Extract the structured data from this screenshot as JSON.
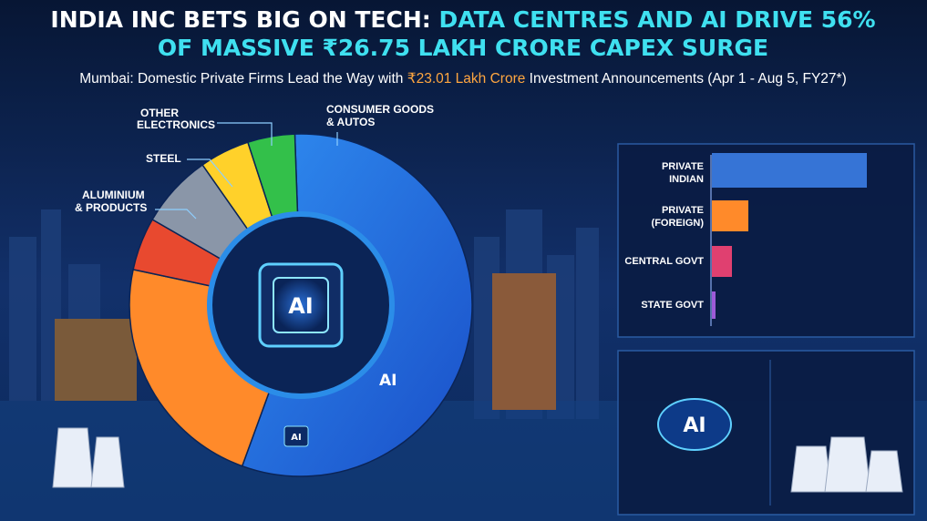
{
  "header": {
    "title_white": "INDIA INC BETS BIG ON TECH: ",
    "title_cyan": "DATA CENTRES AND AI DRIVE 56%",
    "title_line2": "OF MASSIVE ₹26.75 LAKH CRORE CAPEX SURGE",
    "subtitle_start": "Mumbai: Domestic Private Firms Lead the Way with ",
    "subtitle_highlight": "₹23.01 Lakh Crore",
    "subtitle_end": " Investment Announcements (Apr 1 - Aug 5, FY27*)"
  },
  "donut": {
    "labels": {
      "other_electronics": [
        "OTHER",
        "ELECTRONICS"
      ],
      "steel": "STEEL",
      "aluminium": [
        "ALUMINIUM",
        "& PRODUCTS"
      ],
      "consumer": [
        "CONSUMER GOODS",
        "& AUTOS"
      ]
    },
    "center": "AI",
    "small_ai": "AI",
    "chip_ai": "AI"
  },
  "panel": {
    "rows": [
      [
        "PRIVATE",
        "INDIAN"
      ],
      [
        "PRIVATE",
        "(FOREIGN)"
      ],
      [
        "CENTRAL GOVT"
      ],
      [
        "STATE GOVT"
      ]
    ],
    "brain_ai": "AI"
  }
}
